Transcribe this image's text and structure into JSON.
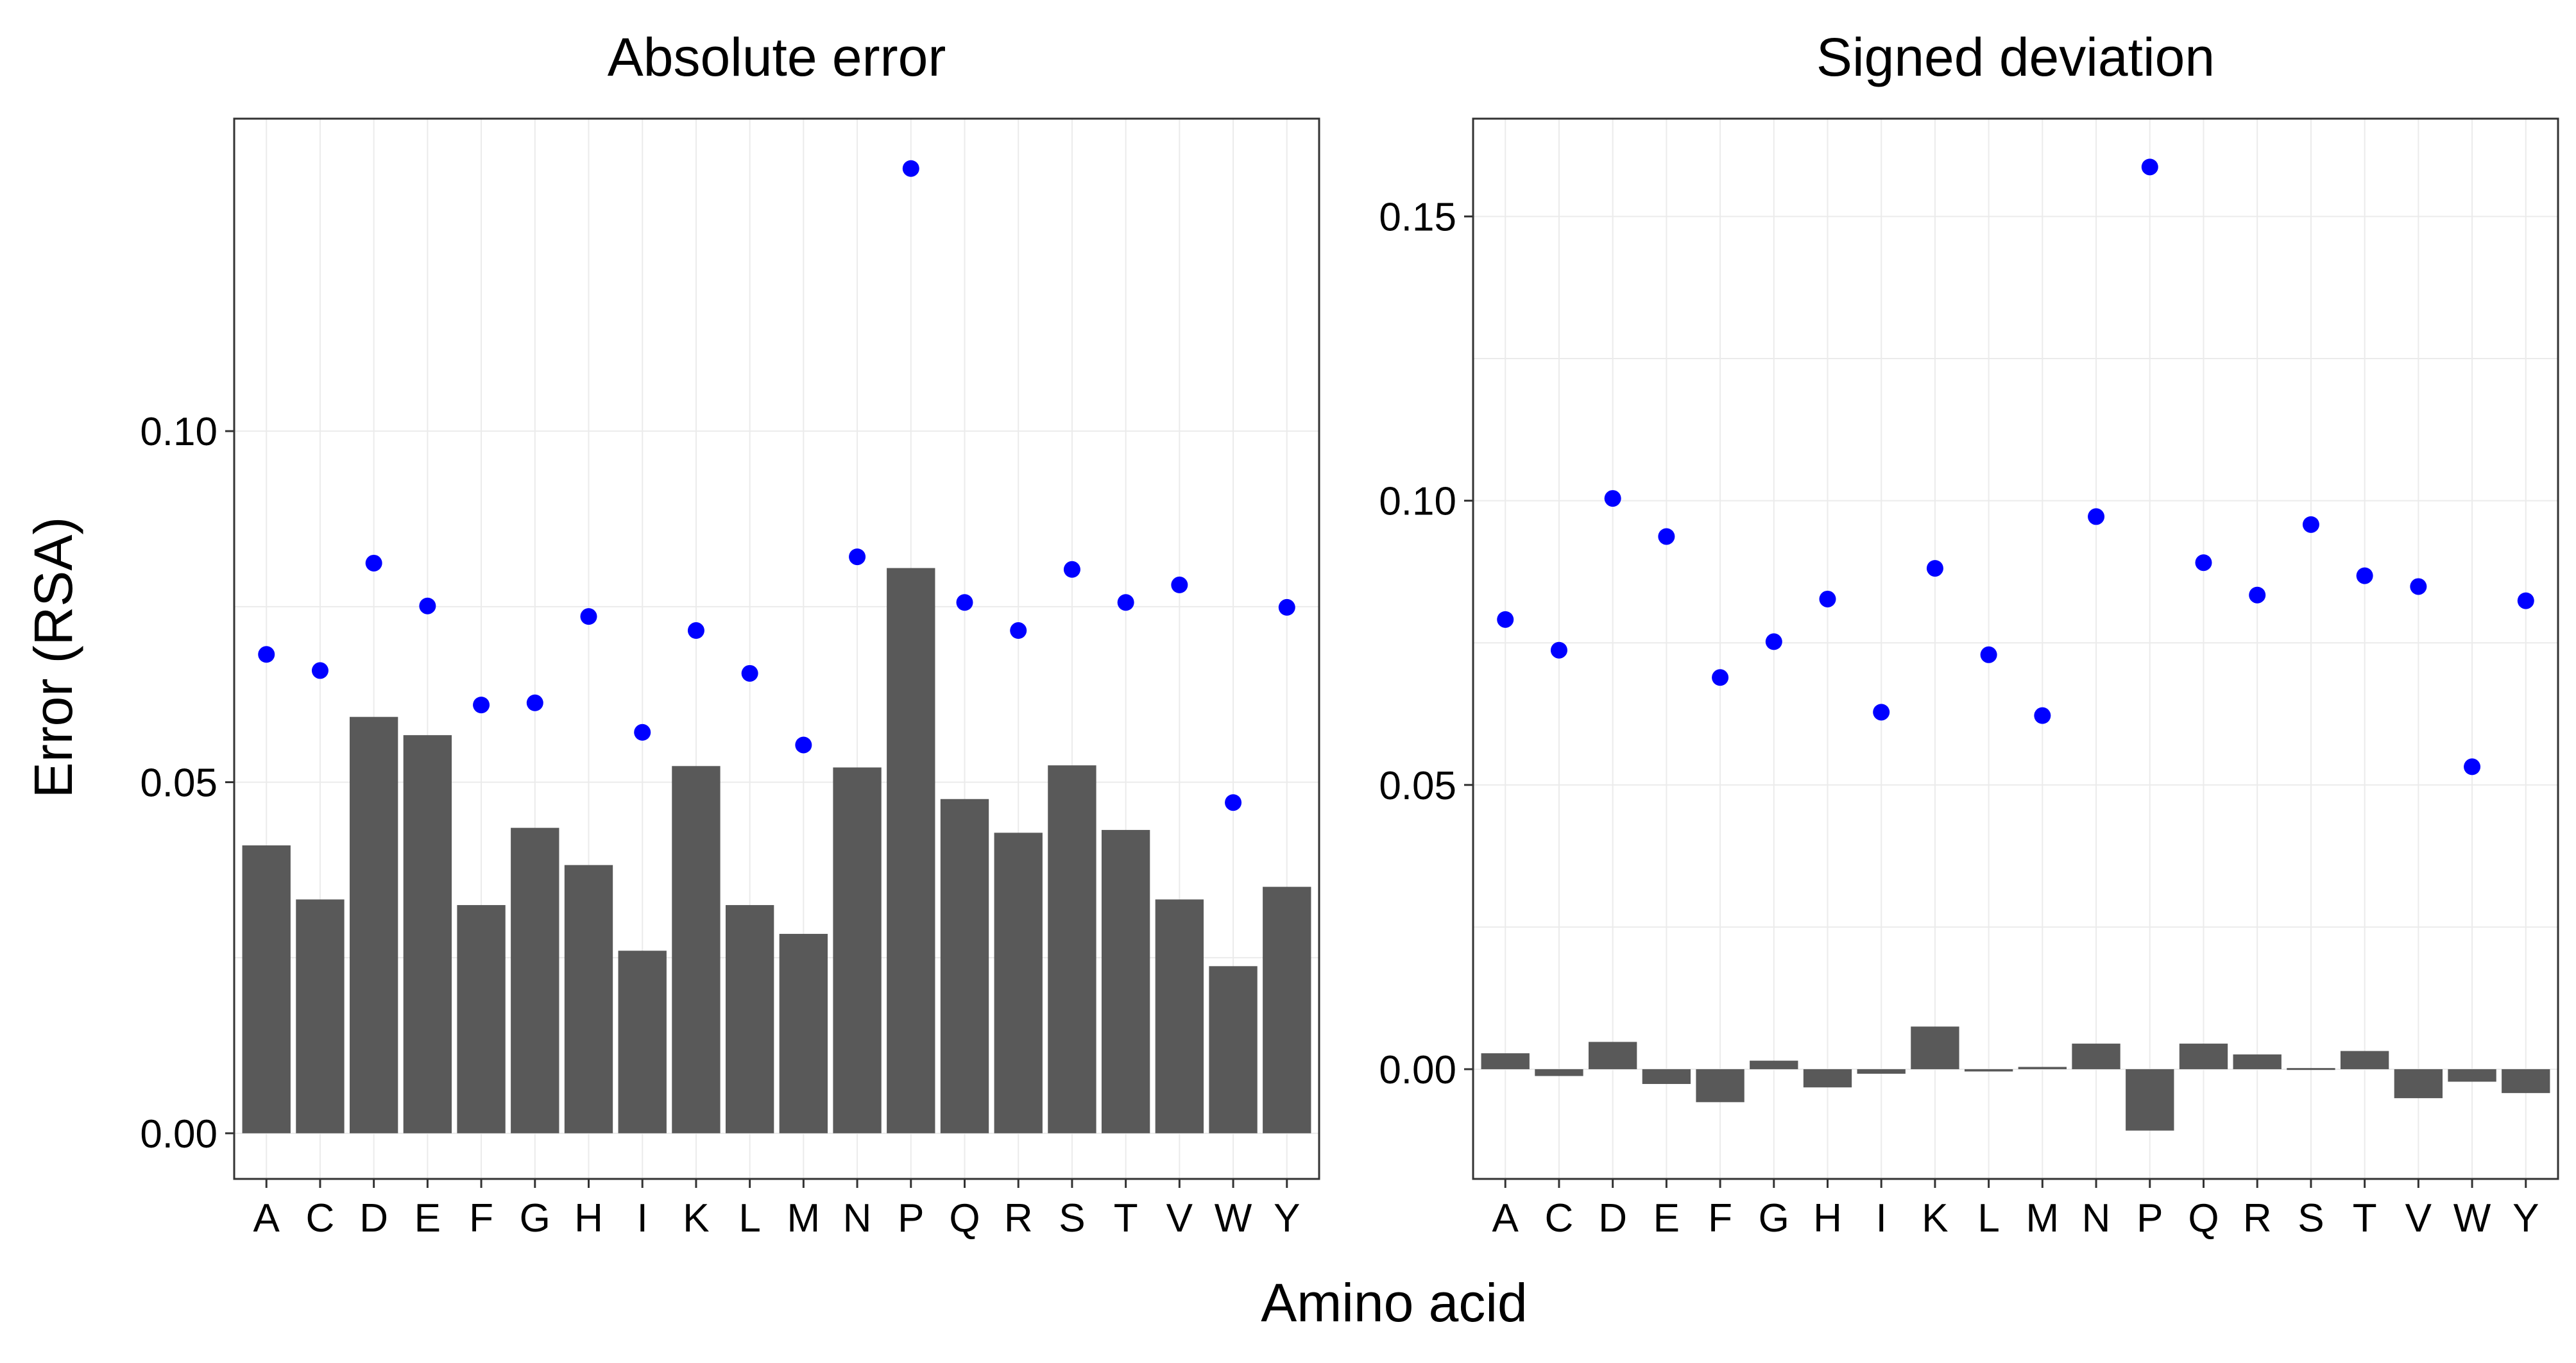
{
  "figure": {
    "xlabel": "Amino acid",
    "ylabel": "Error (RSA)"
  },
  "chart_data": [
    {
      "type": "bar",
      "title": "Absolute error",
      "categories": [
        "A",
        "C",
        "D",
        "E",
        "F",
        "G",
        "H",
        "I",
        "K",
        "L",
        "M",
        "N",
        "P",
        "Q",
        "R",
        "S",
        "T",
        "V",
        "W",
        "Y"
      ],
      "series": [
        {
          "kind": "bar",
          "color": "#595959",
          "values": [
            0.041,
            0.0333,
            0.0593,
            0.0567,
            0.0325,
            0.0435,
            0.0382,
            0.026,
            0.0523,
            0.0325,
            0.0284,
            0.0521,
            0.0805,
            0.0476,
            0.0428,
            0.0524,
            0.0432,
            0.0333,
            0.0238,
            0.0351
          ]
        },
        {
          "kind": "point",
          "color": "#0000ff",
          "values": [
            0.0682,
            0.0659,
            0.0812,
            0.0751,
            0.061,
            0.0613,
            0.0736,
            0.0571,
            0.0716,
            0.0655,
            0.0553,
            0.0821,
            0.1374,
            0.0756,
            0.0716,
            0.0803,
            0.0756,
            0.0781,
            0.0471,
            0.0749
          ]
        }
      ],
      "ylim": [
        -0.0065,
        0.1445
      ],
      "yticks": [
        {
          "value": 0.0,
          "label": "0.00"
        },
        {
          "value": 0.05,
          "label": "0.05"
        },
        {
          "value": 0.1,
          "label": "0.10"
        }
      ],
      "grid": true,
      "legend": "none"
    },
    {
      "type": "bar",
      "title": "Signed deviation",
      "categories": [
        "A",
        "C",
        "D",
        "E",
        "F",
        "G",
        "H",
        "I",
        "K",
        "L",
        "M",
        "N",
        "P",
        "Q",
        "R",
        "S",
        "T",
        "V",
        "W",
        "Y"
      ],
      "series": [
        {
          "kind": "bar",
          "color": "#595959",
          "values": [
            0.0028,
            -0.0012,
            0.0048,
            -0.0026,
            -0.0058,
            0.0015,
            -0.0032,
            -0.0008,
            0.0075,
            -0.0004,
            0.0004,
            0.0045,
            -0.0108,
            0.0045,
            0.0026,
            0.0002,
            0.0032,
            -0.0051,
            -0.0022,
            -0.0042
          ]
        },
        {
          "kind": "point",
          "color": "#0000ff",
          "values": [
            0.0791,
            0.0737,
            0.1004,
            0.0937,
            0.0689,
            0.0752,
            0.0827,
            0.0628,
            0.0881,
            0.0729,
            0.0622,
            0.0972,
            0.1587,
            0.0891,
            0.0834,
            0.0958,
            0.0868,
            0.0849,
            0.0532,
            0.0824
          ]
        }
      ],
      "ylim": [
        -0.0193,
        0.1672
      ],
      "yticks": [
        {
          "value": 0.0,
          "label": "0.00"
        },
        {
          "value": 0.05,
          "label": "0.05"
        },
        {
          "value": 0.1,
          "label": "0.10"
        },
        {
          "value": 0.15,
          "label": "0.15"
        }
      ],
      "grid": true,
      "legend": "none"
    }
  ]
}
